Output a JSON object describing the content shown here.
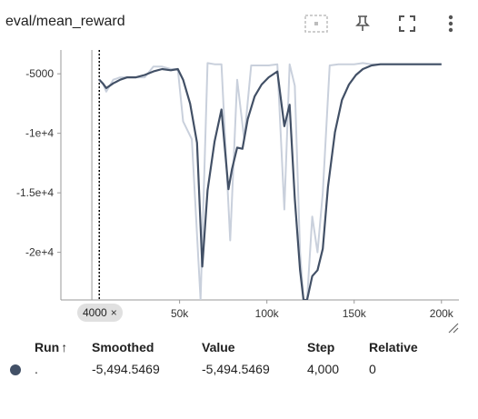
{
  "card": {
    "title": "eval/mean_reward"
  },
  "toolbar": {
    "icons": [
      "fit-domain-icon",
      "pin-icon",
      "fullscreen-icon",
      "more-vert-icon"
    ]
  },
  "chart_data": {
    "type": "line",
    "title": "eval/mean_reward",
    "xlabel": "",
    "ylabel": "",
    "xlim": [
      -18000,
      210000
    ],
    "ylim": [
      -24000,
      -3000
    ],
    "x_ticks": [
      50000,
      100000,
      150000,
      200000
    ],
    "x_tick_labels": [
      "50k",
      "100k",
      "150k",
      "200k"
    ],
    "y_ticks": [
      -5000,
      -10000,
      -15000,
      -20000
    ],
    "y_tick_labels": [
      "-5000",
      "-1e+4",
      "-1.5e+4",
      "-2e+4"
    ],
    "grid": false,
    "colors": {
      "smoothed": "#425066",
      "raw": "#c9d0dc",
      "cursor": "#000000",
      "axis": "#999999"
    },
    "series": [
      {
        "role": "raw",
        "x": [
          4000,
          6000,
          8000,
          10000,
          12000,
          16000,
          20000,
          25000,
          30000,
          35000,
          40000,
          45000,
          49000,
          52000,
          57000,
          62000,
          66000,
          70000,
          74000,
          79000,
          83000,
          87000,
          91000,
          96000,
          101000,
          106000,
          110000,
          113000,
          116000,
          119000,
          121000,
          123000,
          126000,
          129000,
          132000,
          136000,
          141000,
          146000,
          150000,
          155000,
          160000,
          170000,
          180000,
          190000,
          200000
        ],
        "y": [
          -5494.5469,
          -5800,
          -6500,
          -6000,
          -5500,
          -5300,
          -5300,
          -5300,
          -5300,
          -4400,
          -4400,
          -4600,
          -4600,
          -9000,
          -10500,
          -24000,
          -4100,
          -4200,
          -4200,
          -19000,
          -5500,
          -10500,
          -4300,
          -4300,
          -4300,
          -4200,
          -16400,
          -4200,
          -6000,
          -20000,
          -24000,
          -24000,
          -17000,
          -20000,
          -15000,
          -4300,
          -4200,
          -4200,
          -4200,
          -4100,
          -4200,
          -4200,
          -4200,
          -4200,
          -4200
        ]
      },
      {
        "role": "smoothed",
        "x": [
          4000,
          6000,
          8000,
          10000,
          12000,
          16000,
          20000,
          25000,
          30000,
          35000,
          40000,
          45000,
          49000,
          52000,
          56000,
          60000,
          63000,
          66000,
          70000,
          74000,
          78000,
          80000,
          83000,
          86000,
          89000,
          93000,
          97000,
          101000,
          106000,
          110000,
          113000,
          116000,
          119000,
          121000,
          123000,
          126000,
          129000,
          132000,
          135000,
          139000,
          143000,
          147000,
          151000,
          155000,
          160000,
          165000,
          170000,
          175000,
          180000,
          190000,
          200000
        ],
        "y": [
          -5494.5469,
          -5800,
          -6200,
          -6000,
          -5800,
          -5500,
          -5300,
          -5300,
          -5100,
          -4800,
          -4600,
          -4700,
          -4600,
          -5500,
          -7500,
          -10800,
          -21200,
          -14800,
          -10700,
          -8000,
          -14700,
          -13000,
          -11200,
          -11300,
          -8800,
          -6900,
          -5900,
          -5300,
          -4800,
          -9400,
          -7600,
          -15500,
          -21500,
          -24000,
          -24000,
          -22000,
          -21500,
          -19700,
          -14500,
          -9900,
          -7200,
          -5900,
          -5100,
          -4600,
          -4300,
          -4200,
          -4200,
          -4200,
          -4200,
          -4200,
          -4200
        ]
      }
    ],
    "cursor_step": 4000
  },
  "step_chip": {
    "label": "4000",
    "close": "×"
  },
  "table": {
    "headers": {
      "run": "Run",
      "run_sort_icon": "↑",
      "smoothed": "Smoothed",
      "value": "Value",
      "step": "Step",
      "relative": "Relative"
    },
    "rows": [
      {
        "run": ".",
        "smoothed": "-5,494.5469",
        "value": "-5,494.5469",
        "step": "4,000",
        "relative": "0"
      }
    ]
  }
}
